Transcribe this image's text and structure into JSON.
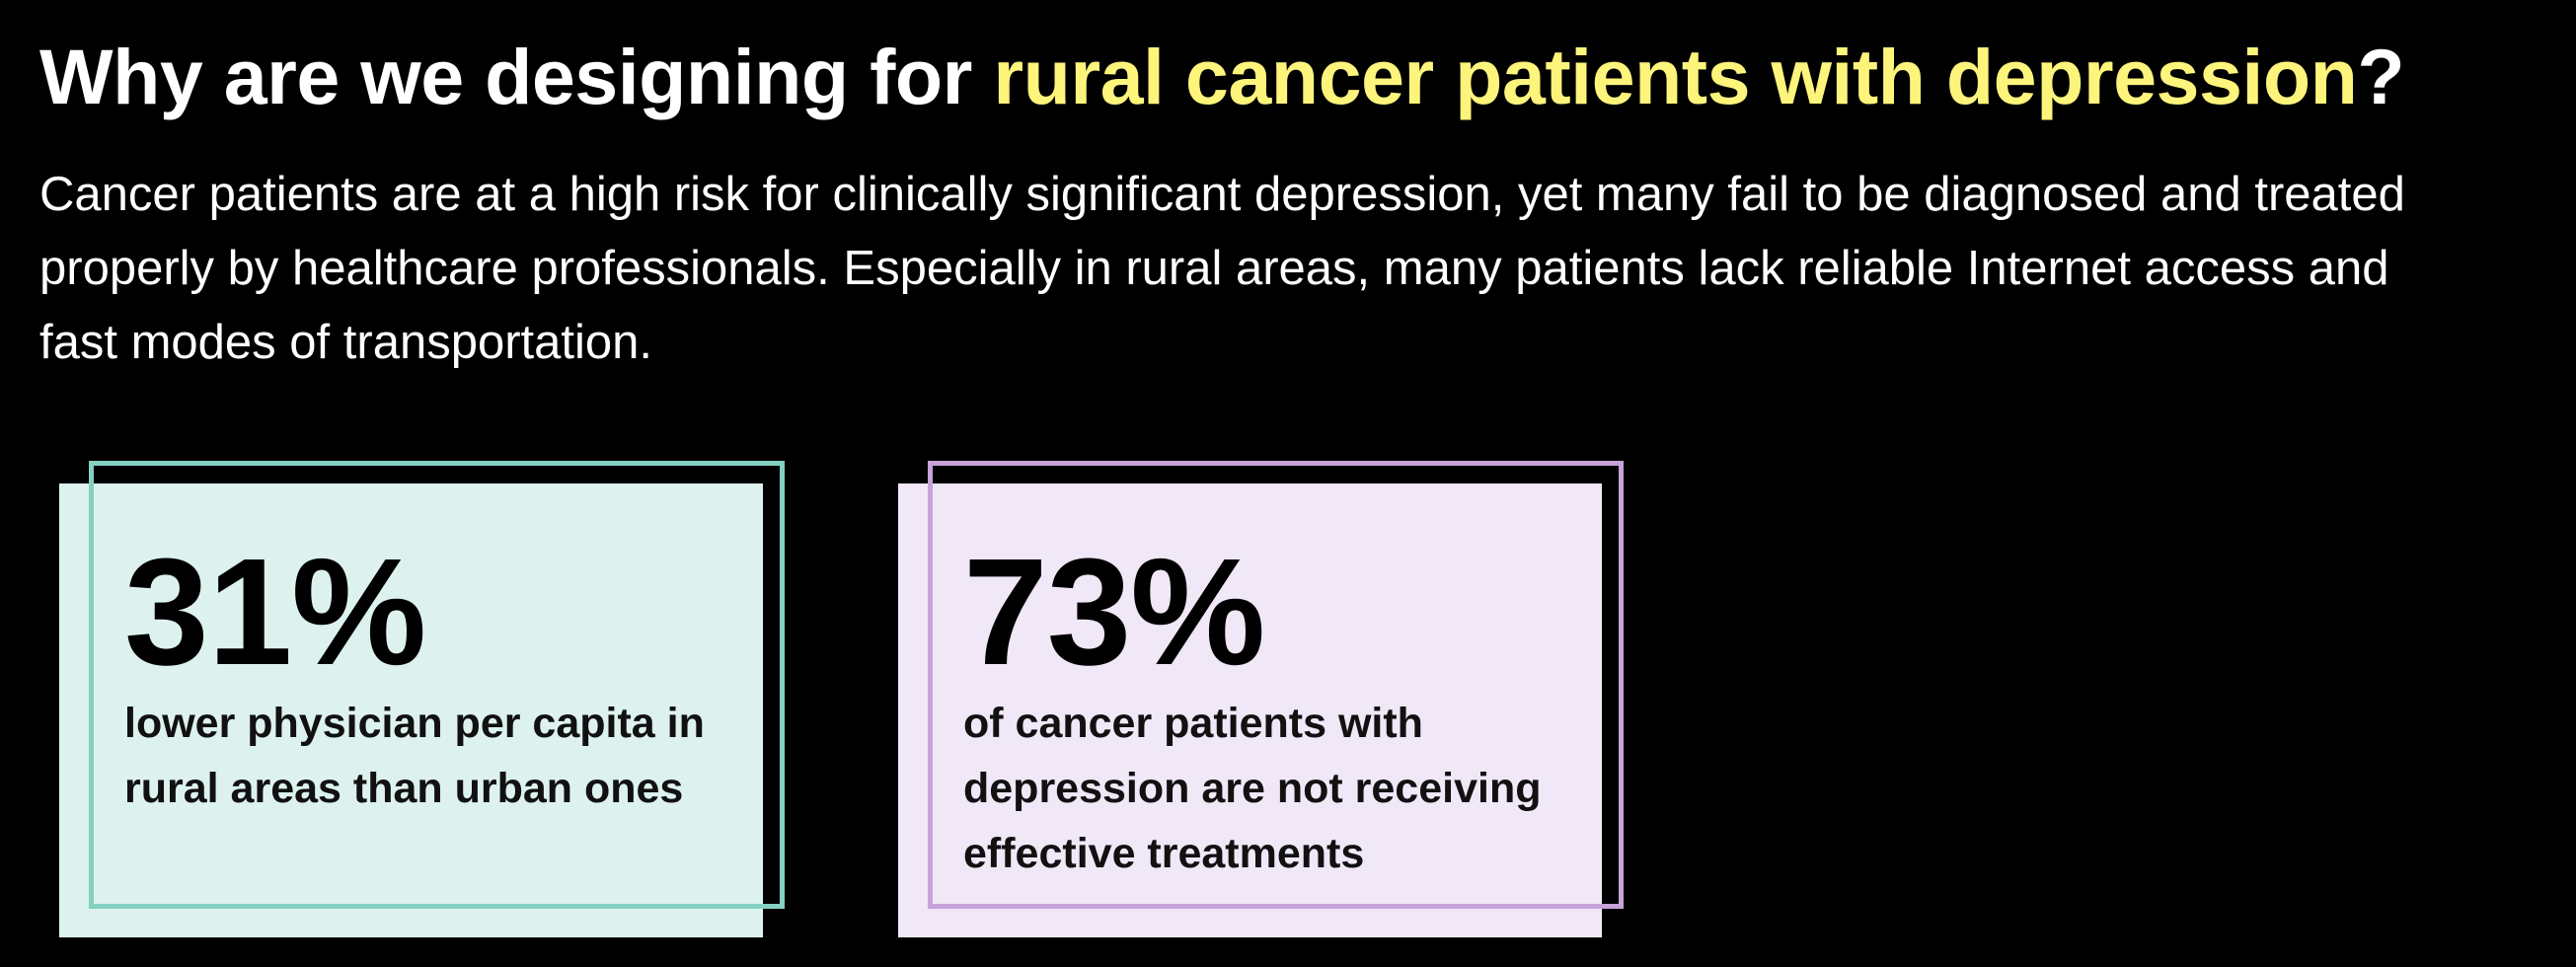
{
  "headline": {
    "prefix": "Why are we designing for ",
    "highlight": "rural cancer patients with depression",
    "suffix": "?"
  },
  "intro": {
    "text": "Cancer patients are at a high risk for clinically significant depression, yet many fail to be diagnosed and treated properly by healthcare professionals. Especially in rural areas, many patients lack reliable Internet access and fast modes of transportation."
  },
  "stats": [
    {
      "value": "31%",
      "description": "lower physician per capita in rural areas than urban ones"
    },
    {
      "value": "73%",
      "description": "of cancer patients with depression are not receiving effective treatments"
    }
  ],
  "colors": {
    "background": "#000000",
    "highlight": "#fdf47c",
    "teal_fill": "#ddf2ef",
    "teal_border": "#84d1c1",
    "purple_fill": "#f0e7f7",
    "purple_border": "#c6a3da"
  }
}
